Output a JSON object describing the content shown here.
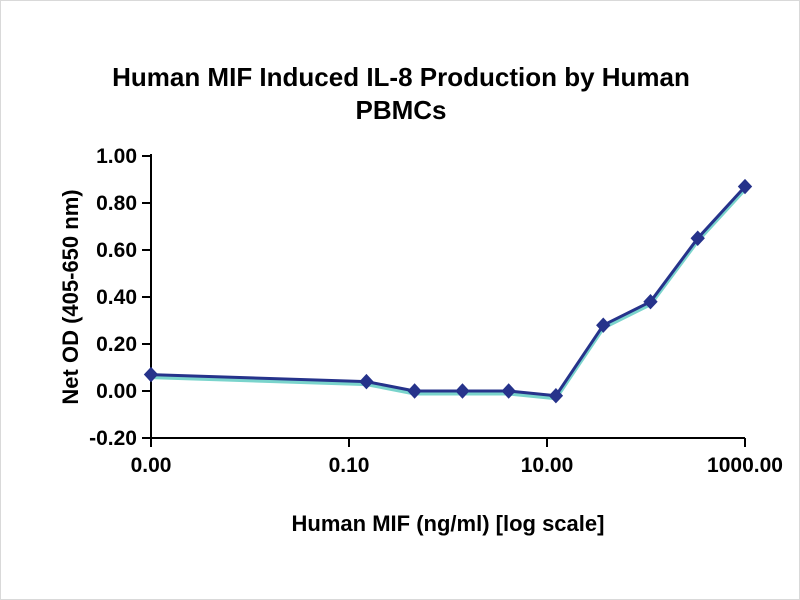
{
  "chart_data": {
    "type": "line",
    "title": "Human MIF Induced IL-8 Production by Human PBMCs",
    "xlabel": "Human MIF (ng/ml) [log scale]",
    "ylabel": "Net OD (405-650 nm)",
    "x_scale": "log",
    "xlim_log": [
      0.001,
      1000
    ],
    "ylim": [
      -0.2,
      1.0
    ],
    "x_ticks": {
      "values": [
        0,
        0.1,
        10,
        1000
      ],
      "labels": [
        "0.00",
        "0.10",
        "10.00",
        "1000.00"
      ]
    },
    "y_ticks": {
      "values": [
        1.0,
        0.8,
        0.6,
        0.4,
        0.2,
        0.0,
        -0.2
      ],
      "labels": [
        "1.00",
        "0.80",
        "0.60",
        "0.40",
        "0.20",
        "0.00",
        "-0.20"
      ]
    },
    "series": [
      {
        "name": "Net OD (405-650 nm)",
        "marker": "diamond",
        "points": [
          [
            0,
            0.07
          ],
          [
            0.15,
            0.04
          ],
          [
            0.46,
            0.0
          ],
          [
            1.4,
            0.0
          ],
          [
            4.1,
            0.0
          ],
          [
            12.3,
            -0.02
          ],
          [
            37,
            0.28
          ],
          [
            111,
            0.38
          ],
          [
            333,
            0.65
          ],
          [
            1000,
            0.87
          ]
        ]
      }
    ],
    "colors": {
      "line": "#26338B",
      "marker": "#26338B",
      "glow": "#7AD4CC",
      "axis": "#000000"
    },
    "grid": false,
    "legend": false
  }
}
